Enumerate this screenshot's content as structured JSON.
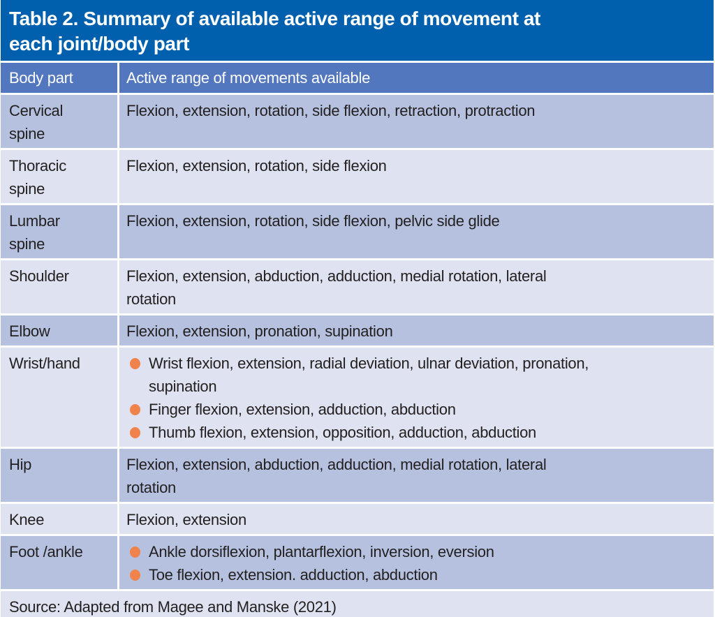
{
  "title": {
    "line1": "Table 2. Summary of available active range of movement at",
    "line2": "each joint/body part"
  },
  "colors": {
    "title_bg": "#0060AE",
    "header_bg": "#5277BE",
    "row_dark": "#B6C1E0",
    "row_light": "#DFE2F1",
    "bullet": "#F0824C",
    "text": "#221F1F",
    "separator": "#FFFFFF"
  },
  "table": {
    "columns": [
      "Body part",
      "Active range of movements available"
    ],
    "rows": [
      {
        "shade": "dark",
        "body_part_lines": [
          "Cervical",
          "spine"
        ],
        "items": [
          {
            "bullet": false,
            "lines": [
              "Flexion, extension, rotation, side flexion, retraction, protraction"
            ]
          }
        ]
      },
      {
        "shade": "light",
        "body_part_lines": [
          "Thoracic",
          "spine"
        ],
        "items": [
          {
            "bullet": false,
            "lines": [
              "Flexion, extension, rotation, side flexion"
            ]
          }
        ]
      },
      {
        "shade": "dark",
        "body_part_lines": [
          "Lumbar",
          "spine"
        ],
        "items": [
          {
            "bullet": false,
            "lines": [
              "Flexion, extension, rotation, side flexion, pelvic side glide"
            ]
          }
        ]
      },
      {
        "shade": "light",
        "body_part_lines": [
          "Shoulder"
        ],
        "items": [
          {
            "bullet": false,
            "lines": [
              "Flexion, extension, abduction, adduction, medial rotation, lateral",
              "rotation"
            ]
          }
        ]
      },
      {
        "shade": "dark",
        "body_part_lines": [
          "Elbow"
        ],
        "items": [
          {
            "bullet": false,
            "lines": [
              "Flexion, extension, pronation, supination"
            ]
          }
        ]
      },
      {
        "shade": "light",
        "body_part_lines": [
          "Wrist/hand"
        ],
        "items": [
          {
            "bullet": true,
            "lines": [
              "Wrist flexion, extension, radial deviation, ulnar deviation, pronation,",
              "supination"
            ]
          },
          {
            "bullet": true,
            "lines": [
              "Finger flexion, extension, adduction, abduction"
            ]
          },
          {
            "bullet": true,
            "lines": [
              "Thumb flexion, extension, opposition, adduction, abduction"
            ]
          }
        ]
      },
      {
        "shade": "dark",
        "body_part_lines": [
          "Hip"
        ],
        "items": [
          {
            "bullet": false,
            "lines": [
              "Flexion, extension, abduction, adduction, medial rotation, lateral",
              "rotation"
            ]
          }
        ]
      },
      {
        "shade": "light",
        "body_part_lines": [
          "Knee"
        ],
        "items": [
          {
            "bullet": false,
            "lines": [
              "Flexion, extension"
            ]
          }
        ]
      },
      {
        "shade": "dark",
        "body_part_lines": [
          "Foot /ankle"
        ],
        "items": [
          {
            "bullet": true,
            "lines": [
              "Ankle dorsiflexion, plantarflexion, inversion, eversion"
            ]
          },
          {
            "bullet": true,
            "lines": [
              "Toe flexion, extension. adduction, abduction"
            ]
          }
        ]
      }
    ],
    "source": "Source: Adapted from Magee and Manske (2021)"
  }
}
